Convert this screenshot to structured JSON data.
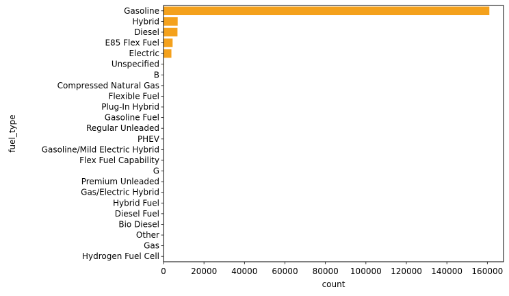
{
  "chart_data": {
    "type": "bar",
    "orientation": "horizontal",
    "xlabel": "count",
    "ylabel": "fuel_type",
    "xlim": [
      0,
      168000
    ],
    "xticks": [
      0,
      20000,
      40000,
      60000,
      80000,
      100000,
      120000,
      140000,
      160000
    ],
    "grid": false,
    "bar_color": "#f4a11c",
    "categories": [
      "Gasoline",
      "Hybrid",
      "Diesel",
      "E85 Flex Fuel",
      "Electric",
      "Unspecified",
      "B",
      "Compressed Natural Gas",
      "Flexible Fuel",
      "Plug-In Hybrid",
      "Gasoline Fuel",
      "Regular Unleaded",
      "PHEV",
      "Gasoline/Mild Electric Hybrid",
      "Flex Fuel Capability",
      "G",
      "Premium Unleaded",
      "Gas/Electric Hybrid",
      "Hybrid Fuel",
      "Diesel Fuel",
      "Bio Diesel",
      "Other",
      "Gas",
      "Hydrogen Fuel Cell"
    ],
    "values": [
      161000,
      7000,
      6900,
      4500,
      3900,
      200,
      120,
      90,
      80,
      70,
      60,
      50,
      40,
      30,
      25,
      20,
      15,
      12,
      10,
      8,
      6,
      4,
      3,
      2
    ]
  }
}
